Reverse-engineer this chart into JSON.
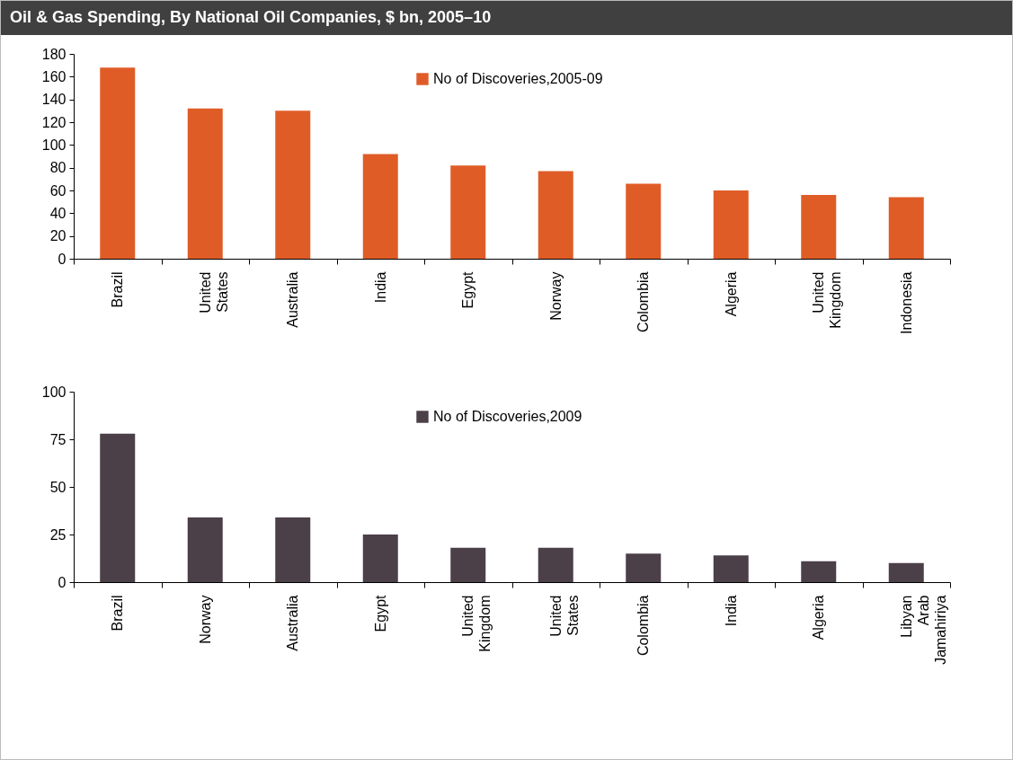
{
  "chart_data": [
    {
      "type": "bar",
      "title": "Oil & Gas Spending, By National Oil Companies, $ bn, 2005–10",
      "categories": [
        "Brazil",
        "United States",
        "Australia",
        "India",
        "Egypt",
        "Norway",
        "Colombia",
        "Algeria",
        "United Kingdom",
        "Indonesia"
      ],
      "series": [
        {
          "name": "No of Discoveries,2005-09",
          "color": "#e05c27",
          "values": [
            168,
            132,
            130,
            92,
            82,
            77,
            66,
            60,
            56,
            54
          ]
        }
      ],
      "ylim": [
        0,
        180
      ],
      "yticks": [
        0,
        20,
        40,
        60,
        80,
        100,
        120,
        140,
        160,
        180
      ],
      "grid": false,
      "legend": "top"
    },
    {
      "type": "bar",
      "categories": [
        "Brazil",
        "Norway",
        "Australia",
        "Egypt",
        "United Kingdom",
        "United States",
        "Colombia",
        "India",
        "Algeria",
        "Libyan Arab Jamahiriya"
      ],
      "series": [
        {
          "name": "No of Discoveries,2009",
          "color": "#4b3f48",
          "values": [
            78,
            34,
            34,
            25,
            18,
            18,
            15,
            14,
            11,
            10
          ]
        }
      ],
      "ylim": [
        0,
        100
      ],
      "yticks": [
        0,
        25,
        50,
        75,
        100
      ],
      "grid": false,
      "legend": "top"
    }
  ]
}
